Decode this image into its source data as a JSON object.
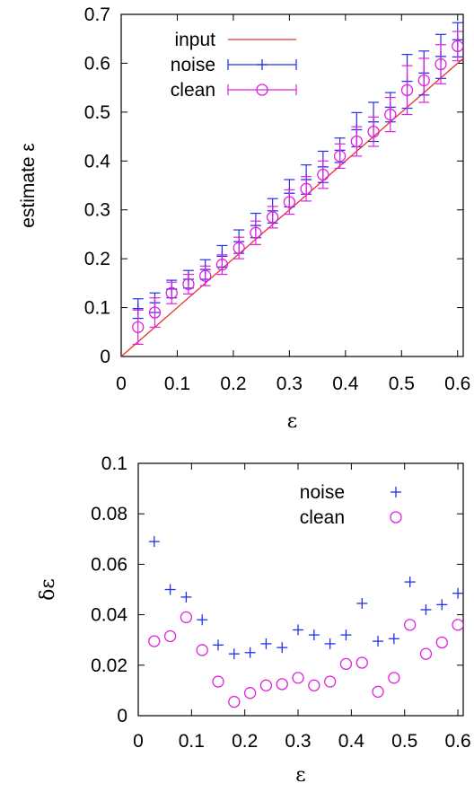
{
  "chart_data": [
    {
      "type": "line",
      "xlabel": "ε",
      "ylabel": "estimate ε",
      "xlim": [
        0,
        0.61
      ],
      "ylim": [
        0,
        0.7
      ],
      "xticks": [
        "0",
        "0.1",
        "0.2",
        "0.3",
        "0.4",
        "0.5",
        "0.6"
      ],
      "yticks": [
        "0",
        "0.1",
        "0.2",
        "0.3",
        "0.4",
        "0.5",
        "0.6",
        "0.7"
      ],
      "legend_position": "top-left",
      "series": [
        {
          "name": "input",
          "style": "line",
          "color": "#e8302c",
          "x": [
            0,
            0.61
          ],
          "y": [
            0,
            0.61
          ]
        },
        {
          "name": "noise",
          "style": "plus-errorbar",
          "color": "#2330e6",
          "x": [
            0.03,
            0.06,
            0.09,
            0.12,
            0.15,
            0.18,
            0.21,
            0.24,
            0.27,
            0.3,
            0.33,
            0.36,
            0.39,
            0.42,
            0.45,
            0.48,
            0.51,
            0.54,
            0.57,
            0.6
          ],
          "y": [
            0.098,
            0.11,
            0.138,
            0.158,
            0.178,
            0.205,
            0.235,
            0.268,
            0.298,
            0.334,
            0.362,
            0.388,
            0.422,
            0.464,
            0.48,
            0.51,
            0.563,
            0.58,
            0.614,
            0.648
          ],
          "err": [
            0.02,
            0.02,
            0.018,
            0.018,
            0.02,
            0.022,
            0.024,
            0.025,
            0.025,
            0.028,
            0.03,
            0.032,
            0.025,
            0.035,
            0.04,
            0.03,
            0.055,
            0.045,
            0.045,
            0.035
          ]
        },
        {
          "name": "clean",
          "style": "circle-errorbar",
          "color": "#e020e0",
          "x": [
            0.03,
            0.06,
            0.09,
            0.12,
            0.15,
            0.18,
            0.21,
            0.24,
            0.27,
            0.3,
            0.33,
            0.36,
            0.39,
            0.42,
            0.45,
            0.48,
            0.51,
            0.54,
            0.57,
            0.6
          ],
          "y": [
            0.06,
            0.09,
            0.13,
            0.148,
            0.165,
            0.188,
            0.222,
            0.253,
            0.285,
            0.316,
            0.343,
            0.372,
            0.41,
            0.44,
            0.46,
            0.495,
            0.545,
            0.565,
            0.598,
            0.635
          ],
          "err": [
            0.035,
            0.03,
            0.022,
            0.02,
            0.02,
            0.02,
            0.022,
            0.024,
            0.022,
            0.025,
            0.025,
            0.028,
            0.025,
            0.03,
            0.03,
            0.035,
            0.05,
            0.045,
            0.04,
            0.03
          ]
        }
      ]
    },
    {
      "type": "scatter",
      "xlabel": "ε",
      "ylabel": "δε",
      "xlim": [
        0,
        0.61
      ],
      "ylim": [
        0,
        0.1
      ],
      "xticks": [
        "0",
        "0.1",
        "0.2",
        "0.3",
        "0.4",
        "0.5",
        "0.6"
      ],
      "yticks": [
        "0",
        "0.02",
        "0.04",
        "0.06",
        "0.08",
        "0.1"
      ],
      "legend_position": "top-right",
      "series": [
        {
          "name": "noise",
          "style": "plus",
          "color": "#2330e6",
          "x": [
            0.03,
            0.06,
            0.09,
            0.12,
            0.15,
            0.18,
            0.21,
            0.24,
            0.27,
            0.3,
            0.33,
            0.36,
            0.39,
            0.42,
            0.45,
            0.48,
            0.51,
            0.54,
            0.57,
            0.6
          ],
          "y": [
            0.069,
            0.05,
            0.047,
            0.038,
            0.028,
            0.0245,
            0.025,
            0.0285,
            0.027,
            0.034,
            0.032,
            0.0285,
            0.032,
            0.0445,
            0.0295,
            0.0305,
            0.053,
            0.042,
            0.044,
            0.0485
          ]
        },
        {
          "name": "clean",
          "style": "circle",
          "color": "#e020e0",
          "x": [
            0.03,
            0.06,
            0.09,
            0.12,
            0.15,
            0.18,
            0.21,
            0.24,
            0.27,
            0.3,
            0.33,
            0.36,
            0.39,
            0.42,
            0.45,
            0.48,
            0.51,
            0.54,
            0.57,
            0.6
          ],
          "y": [
            0.0295,
            0.0315,
            0.039,
            0.026,
            0.0135,
            0.0055,
            0.009,
            0.012,
            0.0125,
            0.015,
            0.012,
            0.0135,
            0.0205,
            0.021,
            0.0095,
            0.015,
            0.036,
            0.0245,
            0.029,
            0.036
          ]
        }
      ]
    }
  ]
}
